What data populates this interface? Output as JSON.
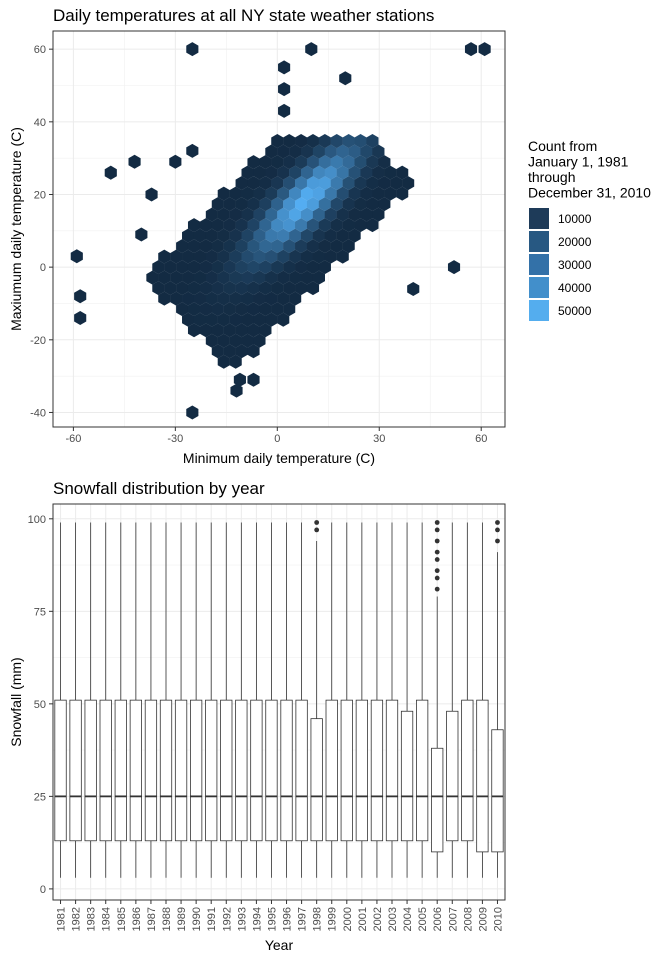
{
  "chart_data": [
    {
      "type": "hexbin",
      "title": "Daily temperatures at all NY state weather stations",
      "xlabel": "Minimum daily temperature (C)",
      "ylabel": "Maxiumum daily temperature (C)",
      "xlim": [
        -66,
        67
      ],
      "ylim": [
        -44,
        65
      ],
      "xticks": [
        -60,
        -30,
        0,
        30,
        60
      ],
      "xtick_labels": [
        "-60",
        "-30",
        "0",
        "30",
        "60"
      ],
      "yticks": [
        -40,
        -20,
        0,
        20,
        40,
        60
      ],
      "ytick_labels": [
        "-40",
        "-20",
        "0",
        "20",
        "40",
        "60"
      ],
      "grid": true,
      "legend": {
        "position": "right",
        "title_lines": [
          "Count from",
          "January 1, 1981",
          "through",
          "December 31, 2010"
        ],
        "entries": [
          {
            "label": "10000",
            "color": "#1e3b59"
          },
          {
            "label": "20000",
            "color": "#275882"
          },
          {
            "label": "30000",
            "color": "#3371a8"
          },
          {
            "label": "40000",
            "color": "#428fcb"
          },
          {
            "label": "50000",
            "color": "#54adee"
          }
        ]
      },
      "color_low": "#132b43",
      "color_high": "#56b1f7",
      "outliers": [
        {
          "x": -25,
          "y": 60
        },
        {
          "x": 10,
          "y": 60
        },
        {
          "x": 57,
          "y": 60
        },
        {
          "x": 61,
          "y": 60
        },
        {
          "x": 2,
          "y": 55
        },
        {
          "x": 20,
          "y": 52
        },
        {
          "x": 2,
          "y": 49
        },
        {
          "x": 2,
          "y": 43
        },
        {
          "x": -49,
          "y": 26
        },
        {
          "x": -42,
          "y": 29
        },
        {
          "x": -30,
          "y": 29
        },
        {
          "x": -37,
          "y": 20
        },
        {
          "x": -25,
          "y": 32
        },
        {
          "x": -40,
          "y": 9
        },
        {
          "x": -59,
          "y": 3
        },
        {
          "x": -58,
          "y": -8
        },
        {
          "x": -58,
          "y": -14
        },
        {
          "x": 52,
          "y": 0
        },
        {
          "x": 40,
          "y": -6
        },
        {
          "x": -25,
          "y": -40
        },
        {
          "x": -11,
          "y": -31
        },
        {
          "x": -7,
          "y": -31
        },
        {
          "x": -12,
          "y": -34
        }
      ]
    },
    {
      "type": "boxplot",
      "title": "Snowfall distribution by year",
      "xlabel": "Year",
      "ylabel": "Snowfall (mm)",
      "ylim": [
        -3,
        104
      ],
      "yticks": [
        0,
        25,
        50,
        75,
        100
      ],
      "ytick_labels": [
        "0",
        "25",
        "50",
        "75",
        "100"
      ],
      "grid": true,
      "categories": [
        "1981",
        "1982",
        "1983",
        "1984",
        "1985",
        "1986",
        "1987",
        "1988",
        "1989",
        "1990",
        "1991",
        "1992",
        "1993",
        "1994",
        "1995",
        "1996",
        "1997",
        "1998",
        "1999",
        "2000",
        "2001",
        "2002",
        "2003",
        "2004",
        "2005",
        "2006",
        "2007",
        "2008",
        "2009",
        "2010"
      ],
      "boxes": [
        {
          "min": 3,
          "q1": 13,
          "median": 25,
          "q3": 51,
          "max": 99,
          "outliers": []
        },
        {
          "min": 3,
          "q1": 13,
          "median": 25,
          "q3": 51,
          "max": 99,
          "outliers": []
        },
        {
          "min": 3,
          "q1": 13,
          "median": 25,
          "q3": 51,
          "max": 99,
          "outliers": []
        },
        {
          "min": 3,
          "q1": 13,
          "median": 25,
          "q3": 51,
          "max": 99,
          "outliers": []
        },
        {
          "min": 3,
          "q1": 13,
          "median": 25,
          "q3": 51,
          "max": 99,
          "outliers": []
        },
        {
          "min": 3,
          "q1": 13,
          "median": 25,
          "q3": 51,
          "max": 99,
          "outliers": []
        },
        {
          "min": 3,
          "q1": 13,
          "median": 25,
          "q3": 51,
          "max": 99,
          "outliers": []
        },
        {
          "min": 3,
          "q1": 13,
          "median": 25,
          "q3": 51,
          "max": 99,
          "outliers": []
        },
        {
          "min": 3,
          "q1": 13,
          "median": 25,
          "q3": 51,
          "max": 99,
          "outliers": []
        },
        {
          "min": 3,
          "q1": 13,
          "median": 25,
          "q3": 51,
          "max": 99,
          "outliers": []
        },
        {
          "min": 3,
          "q1": 13,
          "median": 25,
          "q3": 51,
          "max": 99,
          "outliers": []
        },
        {
          "min": 3,
          "q1": 13,
          "median": 25,
          "q3": 51,
          "max": 99,
          "outliers": []
        },
        {
          "min": 3,
          "q1": 13,
          "median": 25,
          "q3": 51,
          "max": 99,
          "outliers": []
        },
        {
          "min": 3,
          "q1": 13,
          "median": 25,
          "q3": 51,
          "max": 99,
          "outliers": []
        },
        {
          "min": 3,
          "q1": 13,
          "median": 25,
          "q3": 51,
          "max": 99,
          "outliers": []
        },
        {
          "min": 3,
          "q1": 13,
          "median": 25,
          "q3": 51,
          "max": 99,
          "outliers": []
        },
        {
          "min": 3,
          "q1": 13,
          "median": 25,
          "q3": 51,
          "max": 99,
          "outliers": []
        },
        {
          "min": 3,
          "q1": 13,
          "median": 25,
          "q3": 46,
          "max": 94,
          "outliers": [
            97,
            99
          ]
        },
        {
          "min": 3,
          "q1": 13,
          "median": 25,
          "q3": 51,
          "max": 99,
          "outliers": []
        },
        {
          "min": 3,
          "q1": 13,
          "median": 25,
          "q3": 51,
          "max": 99,
          "outliers": []
        },
        {
          "min": 3,
          "q1": 13,
          "median": 25,
          "q3": 51,
          "max": 99,
          "outliers": []
        },
        {
          "min": 3,
          "q1": 13,
          "median": 25,
          "q3": 51,
          "max": 99,
          "outliers": []
        },
        {
          "min": 3,
          "q1": 13,
          "median": 25,
          "q3": 51,
          "max": 99,
          "outliers": []
        },
        {
          "min": 3,
          "q1": 13,
          "median": 25,
          "q3": 48,
          "max": 99,
          "outliers": []
        },
        {
          "min": 3,
          "q1": 13,
          "median": 25,
          "q3": 51,
          "max": 99,
          "outliers": []
        },
        {
          "min": 3,
          "q1": 10,
          "median": 25,
          "q3": 38,
          "max": 79,
          "outliers": [
            81,
            84,
            86,
            89,
            91,
            94,
            97,
            99
          ]
        },
        {
          "min": 3,
          "q1": 13,
          "median": 25,
          "q3": 48,
          "max": 99,
          "outliers": []
        },
        {
          "min": 3,
          "q1": 13,
          "median": 25,
          "q3": 51,
          "max": 99,
          "outliers": []
        },
        {
          "min": 3,
          "q1": 10,
          "median": 25,
          "q3": 51,
          "max": 99,
          "outliers": []
        },
        {
          "min": 3,
          "q1": 10,
          "median": 25,
          "q3": 43,
          "max": 91,
          "outliers": [
            94,
            97,
            99
          ]
        }
      ]
    }
  ]
}
